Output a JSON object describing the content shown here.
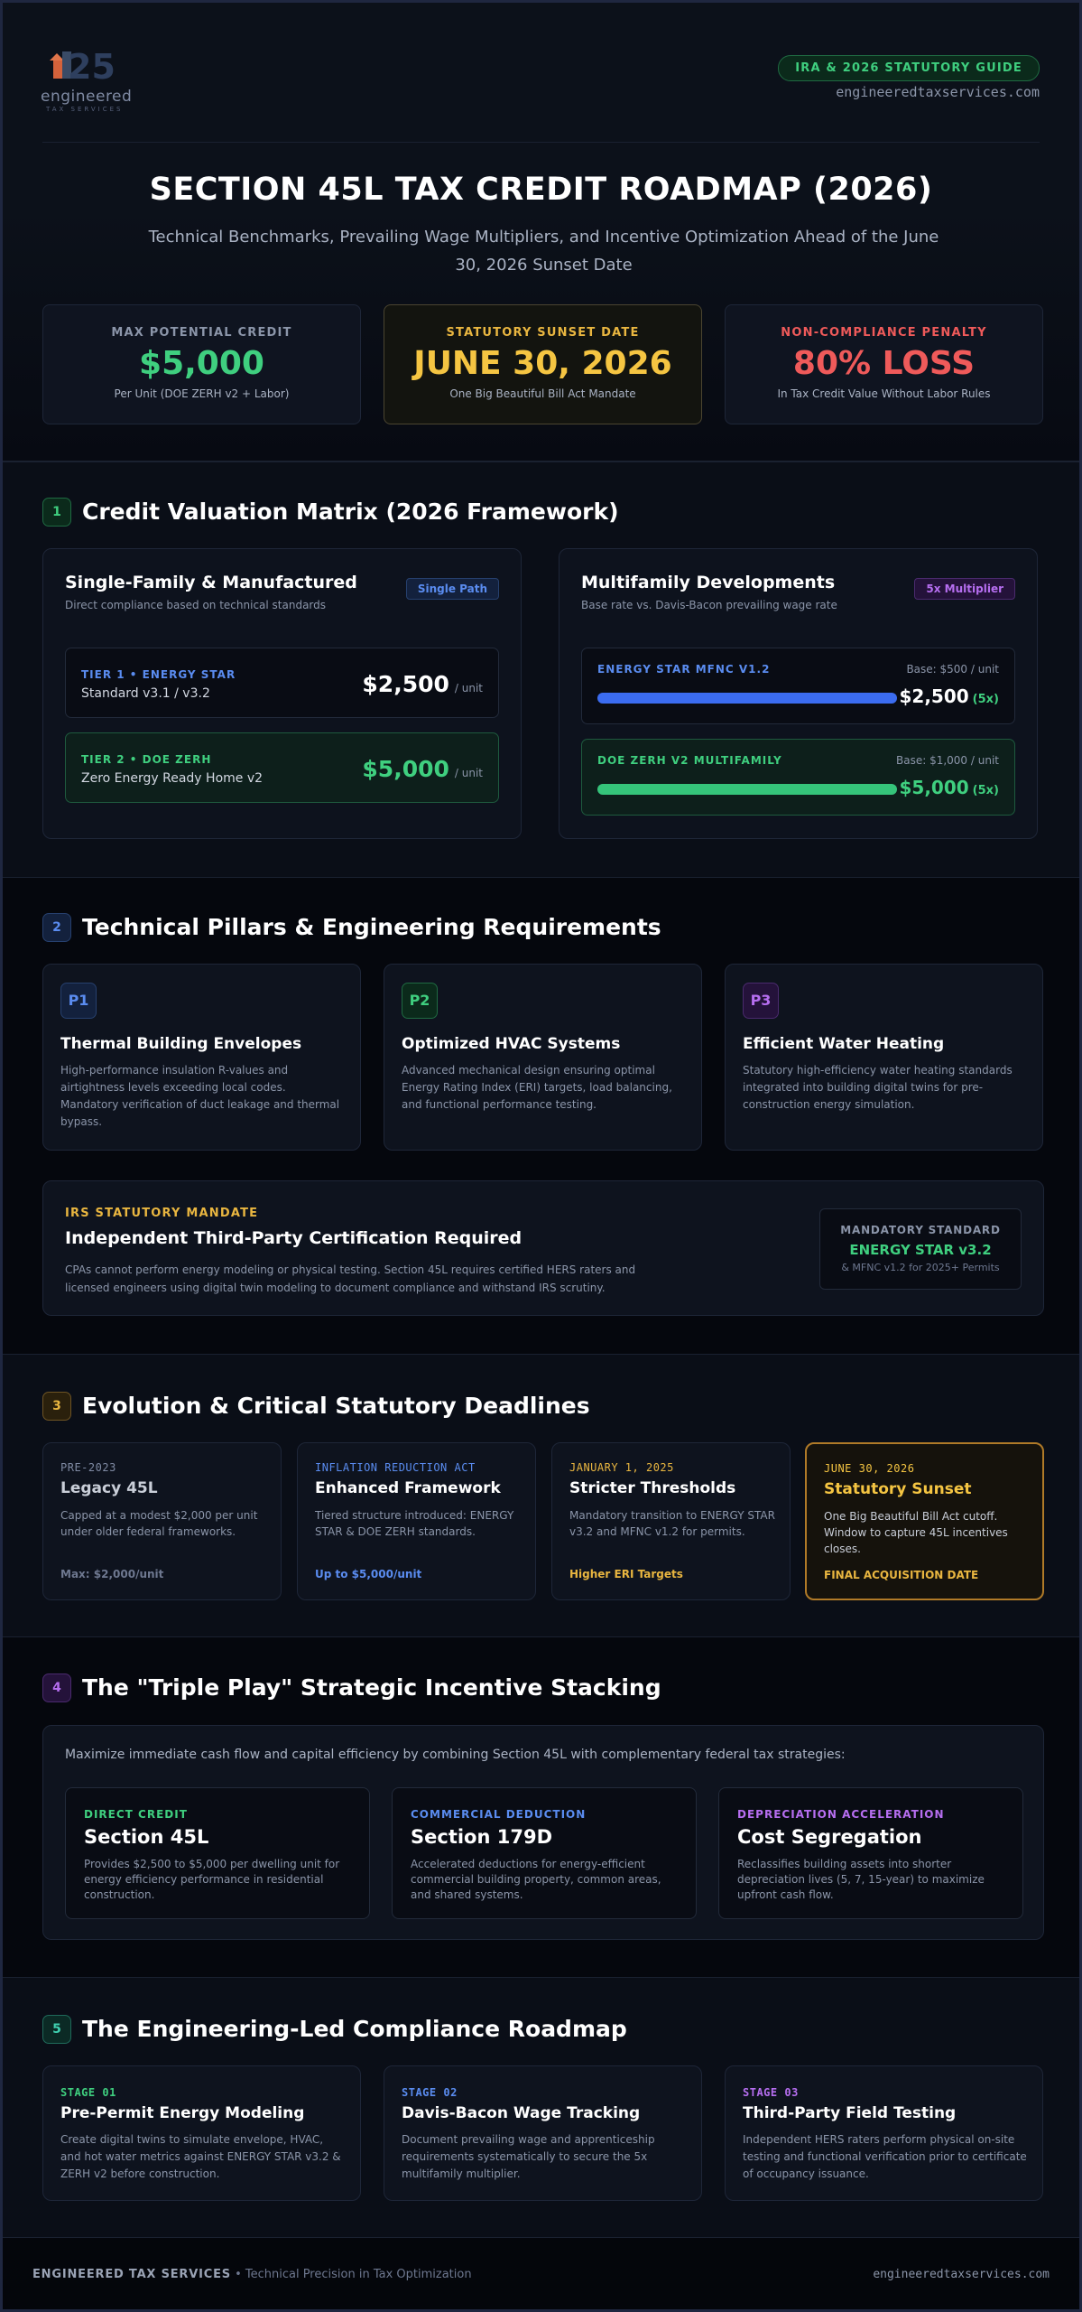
{
  "colors": {
    "green": "#3fcf7f",
    "gold": "#f5c542",
    "red": "#ef5a5a",
    "blue": "#5a8cf0",
    "purple": "#b66ef0"
  },
  "header": {
    "logo": {
      "word": "engineered",
      "sub": "TAX SERVICES",
      "mark": "25"
    },
    "guide_pill": "IRA & 2026 STATUTORY GUIDE",
    "site": "engineeredtaxservices.com",
    "title": "SECTION 45L TAX CREDIT ROADMAP (2026)",
    "subtitle": "Technical Benchmarks, Prevailing Wage Multipliers, and Incentive Optimization Ahead of the June 30, 2026 Sunset Date",
    "stats": [
      {
        "label": "MAX POTENTIAL CREDIT",
        "value": "$5,000",
        "note": "Per Unit (DOE ZERH v2 + Labor)"
      },
      {
        "label": "STATUTORY SUNSET DATE",
        "value": "JUNE 30, 2026",
        "note": "One Big Beautiful Bill Act Mandate"
      },
      {
        "label": "NON-COMPLIANCE PENALTY",
        "value": "80% LOSS",
        "note": "In Tax Credit Value Without Labor Rules"
      }
    ]
  },
  "sections": {
    "s1": {
      "num": "1",
      "title": "Credit Valuation Matrix (2026 Framework)"
    },
    "s2": {
      "num": "2",
      "title": "Technical Pillars & Engineering Requirements"
    },
    "s3": {
      "num": "3",
      "title": "Evolution & Critical Statutory Deadlines"
    },
    "s4": {
      "num": "4",
      "title": "The \"Triple Play\" Strategic Incentive Stacking"
    },
    "s5": {
      "num": "5",
      "title": "The Engineering-Led Compliance Roadmap"
    }
  },
  "matrix": {
    "single": {
      "title": "Single-Family & Manufactured",
      "sub": "Direct compliance based on technical standards",
      "badge": "Single Path",
      "tiers": [
        {
          "label": "TIER 1 • ENERGY STAR",
          "name": "Standard v3.1 / v3.2",
          "value": "$2,500",
          "unit": "/ unit"
        },
        {
          "label": "TIER 2 • DOE ZERH",
          "name": "Zero Energy Ready Home v2",
          "value": "$5,000",
          "unit": "/ unit"
        }
      ]
    },
    "multi": {
      "title": "Multifamily Developments",
      "sub": "Base rate vs. Davis-Bacon prevailing wage rate",
      "badge": "5x Multiplier",
      "rows": [
        {
          "label": "ENERGY STAR MFNC V1.2",
          "base": "Base: $500 / unit",
          "value": "$2,500",
          "mult": "(5x)",
          "fill": 1.0
        },
        {
          "label": "DOE ZERH V2 MULTIFAMILY",
          "base": "Base: $1,000 / unit",
          "value": "$5,000",
          "mult": "(5x)",
          "fill": 1.0
        }
      ]
    }
  },
  "pillars": [
    {
      "badge": "P1",
      "title": "Thermal Building Envelopes",
      "text": "High-performance insulation R-values and airtightness levels exceeding local codes. Mandatory verification of duct leakage and thermal bypass."
    },
    {
      "badge": "P2",
      "title": "Optimized HVAC Systems",
      "text": "Advanced mechanical design ensuring optimal Energy Rating Index (ERI) targets, load balancing, and functional performance testing."
    },
    {
      "badge": "P3",
      "title": "Efficient Water Heating",
      "text": "Statutory high-efficiency water heating standards integrated into building digital twins for pre-construction energy simulation."
    }
  ],
  "mandate": {
    "label": "IRS STATUTORY MANDATE",
    "title": "Independent Third-Party Certification Required",
    "text": "CPAs cannot perform energy modeling or physical testing. Section 45L requires certified HERS raters and licensed engineers using digital twin modeling to document compliance and withstand IRS scrutiny.",
    "box_label": "MANDATORY STANDARD",
    "box_value": "ENERGY STAR v3.2",
    "box_note": "& MFNC v1.2 for 2025+ Permits"
  },
  "timeline": [
    {
      "date": "PRE-2023",
      "title": "Legacy 45L",
      "text": "Capped at a modest $2,000 per unit under older federal frameworks.",
      "foot": "Max: $2,000/unit"
    },
    {
      "date": "INFLATION REDUCTION ACT",
      "title": "Enhanced Framework",
      "text": "Tiered structure introduced: ENERGY STAR & DOE ZERH standards.",
      "foot": "Up to $5,000/unit"
    },
    {
      "date": "JANUARY 1, 2025",
      "title": "Stricter Thresholds",
      "text": "Mandatory transition to ENERGY STAR v3.2 and MFNC v1.2 for permits.",
      "foot": "Higher ERI Targets"
    },
    {
      "date": "JUNE 30, 2026",
      "title": "Statutory Sunset",
      "text": "One Big Beautiful Bill Act cutoff. Window to capture 45L incentives closes.",
      "foot": "FINAL ACQUISITION DATE"
    }
  ],
  "stacking": {
    "intro": "Maximize immediate cash flow and capital efficiency by combining Section 45L with complementary federal tax strategies:",
    "cards": [
      {
        "label": "DIRECT CREDIT",
        "title": "Section 45L",
        "text": "Provides $2,500 to $5,000 per dwelling unit for energy efficiency performance in residential construction."
      },
      {
        "label": "COMMERCIAL DEDUCTION",
        "title": "Section 179D",
        "text": "Accelerated deductions for energy-efficient commercial building property, common areas, and shared systems."
      },
      {
        "label": "DEPRECIATION ACCELERATION",
        "title": "Cost Segregation",
        "text": "Reclassifies building assets into shorter depreciation lives (5, 7, 15-year) to maximize upfront cash flow."
      }
    ]
  },
  "roadmap": [
    {
      "label": "STAGE 01",
      "title": "Pre-Permit Energy Modeling",
      "text": "Create digital twins to simulate envelope, HVAC, and hot water metrics against ENERGY STAR v3.2 & ZERH v2 before construction."
    },
    {
      "label": "STAGE 02",
      "title": "Davis-Bacon Wage Tracking",
      "text": "Document prevailing wage and apprenticeship requirements systematically to secure the 5x multifamily multiplier."
    },
    {
      "label": "STAGE 03",
      "title": "Third-Party Field Testing",
      "text": "Independent HERS raters perform physical on-site testing and functional verification prior to certificate of occupancy issuance."
    }
  ],
  "footer": {
    "brand": "ENGINEERED TAX SERVICES",
    "sep": "•",
    "tagline": "Technical Precision in Tax Optimization",
    "site": "engineeredtaxservices.com"
  }
}
